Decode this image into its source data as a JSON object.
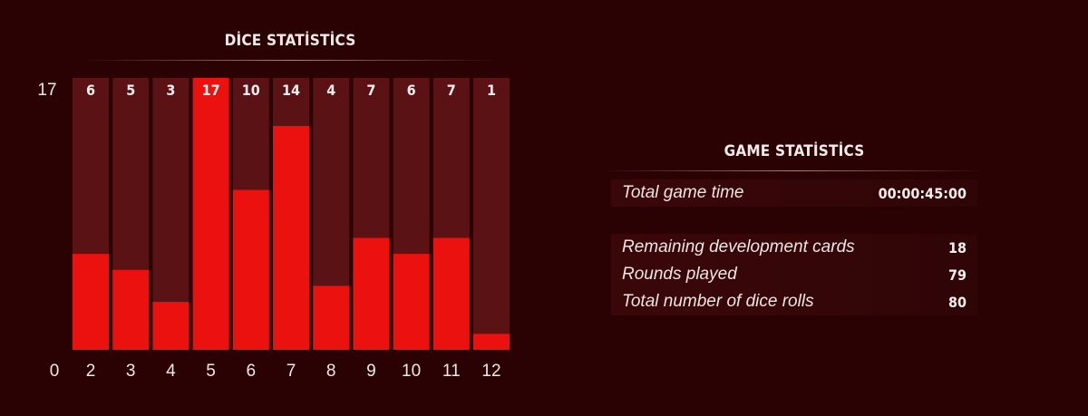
{
  "dice_section": {
    "title": "DİCE STATİSTİCS"
  },
  "game_section": {
    "title": "GAME STATİSTİCS",
    "rows": [
      {
        "label": "Total game time",
        "value": "00:00:45:00"
      },
      {
        "label": "Remaining development cards",
        "value": "18"
      },
      {
        "label": "Rounds played",
        "value": "79"
      },
      {
        "label": "Total number of dice rolls",
        "value": "80"
      }
    ]
  },
  "colors": {
    "background": "#2b0203",
    "bar_track": "#5a1214",
    "bar_fill": "#ea110f"
  },
  "chart_data": {
    "type": "bar",
    "categories": [
      "2",
      "3",
      "4",
      "5",
      "6",
      "7",
      "8",
      "9",
      "10",
      "11",
      "12"
    ],
    "values": [
      6,
      5,
      3,
      17,
      10,
      14,
      4,
      7,
      6,
      7,
      1
    ],
    "ylim": [
      0,
      17
    ],
    "y_axis_labels": {
      "min": "0",
      "max": "17"
    },
    "title": "DİCE STATİSTİCS",
    "xlabel": "",
    "ylabel": "",
    "grid": false
  }
}
